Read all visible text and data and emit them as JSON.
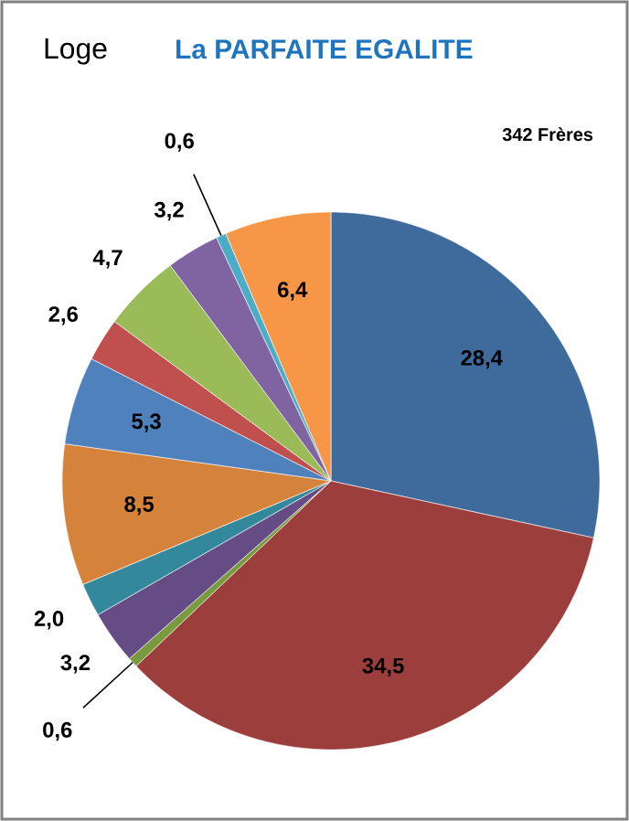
{
  "chart_data": {
    "type": "pie",
    "title": "Loge",
    "subtitle": "La PARFAITE EGALITE",
    "annotations": [
      "342 Frères"
    ],
    "categories": [
      null,
      null,
      null,
      null,
      null,
      null,
      null,
      null,
      null,
      null,
      null,
      null
    ],
    "values": [
      28.4,
      34.5,
      0.6,
      3.2,
      2.0,
      8.5,
      5.3,
      2.6,
      4.7,
      3.2,
      0.6,
      6.4
    ],
    "colors": [
      "#3F6A9C",
      "#9B3E3C",
      "#7A9A3E",
      "#654C85",
      "#34889C",
      "#D5823A",
      "#4F81BD",
      "#C0504D",
      "#9BBB59",
      "#8064A2",
      "#4BACC6",
      "#F79646"
    ],
    "value_labels": [
      "28,4",
      "34,5",
      "0,6",
      "3,2",
      "2,0",
      "8,5",
      "5,3",
      "2,6",
      "4,7",
      "3,2",
      "0,6",
      "6,4"
    ]
  }
}
